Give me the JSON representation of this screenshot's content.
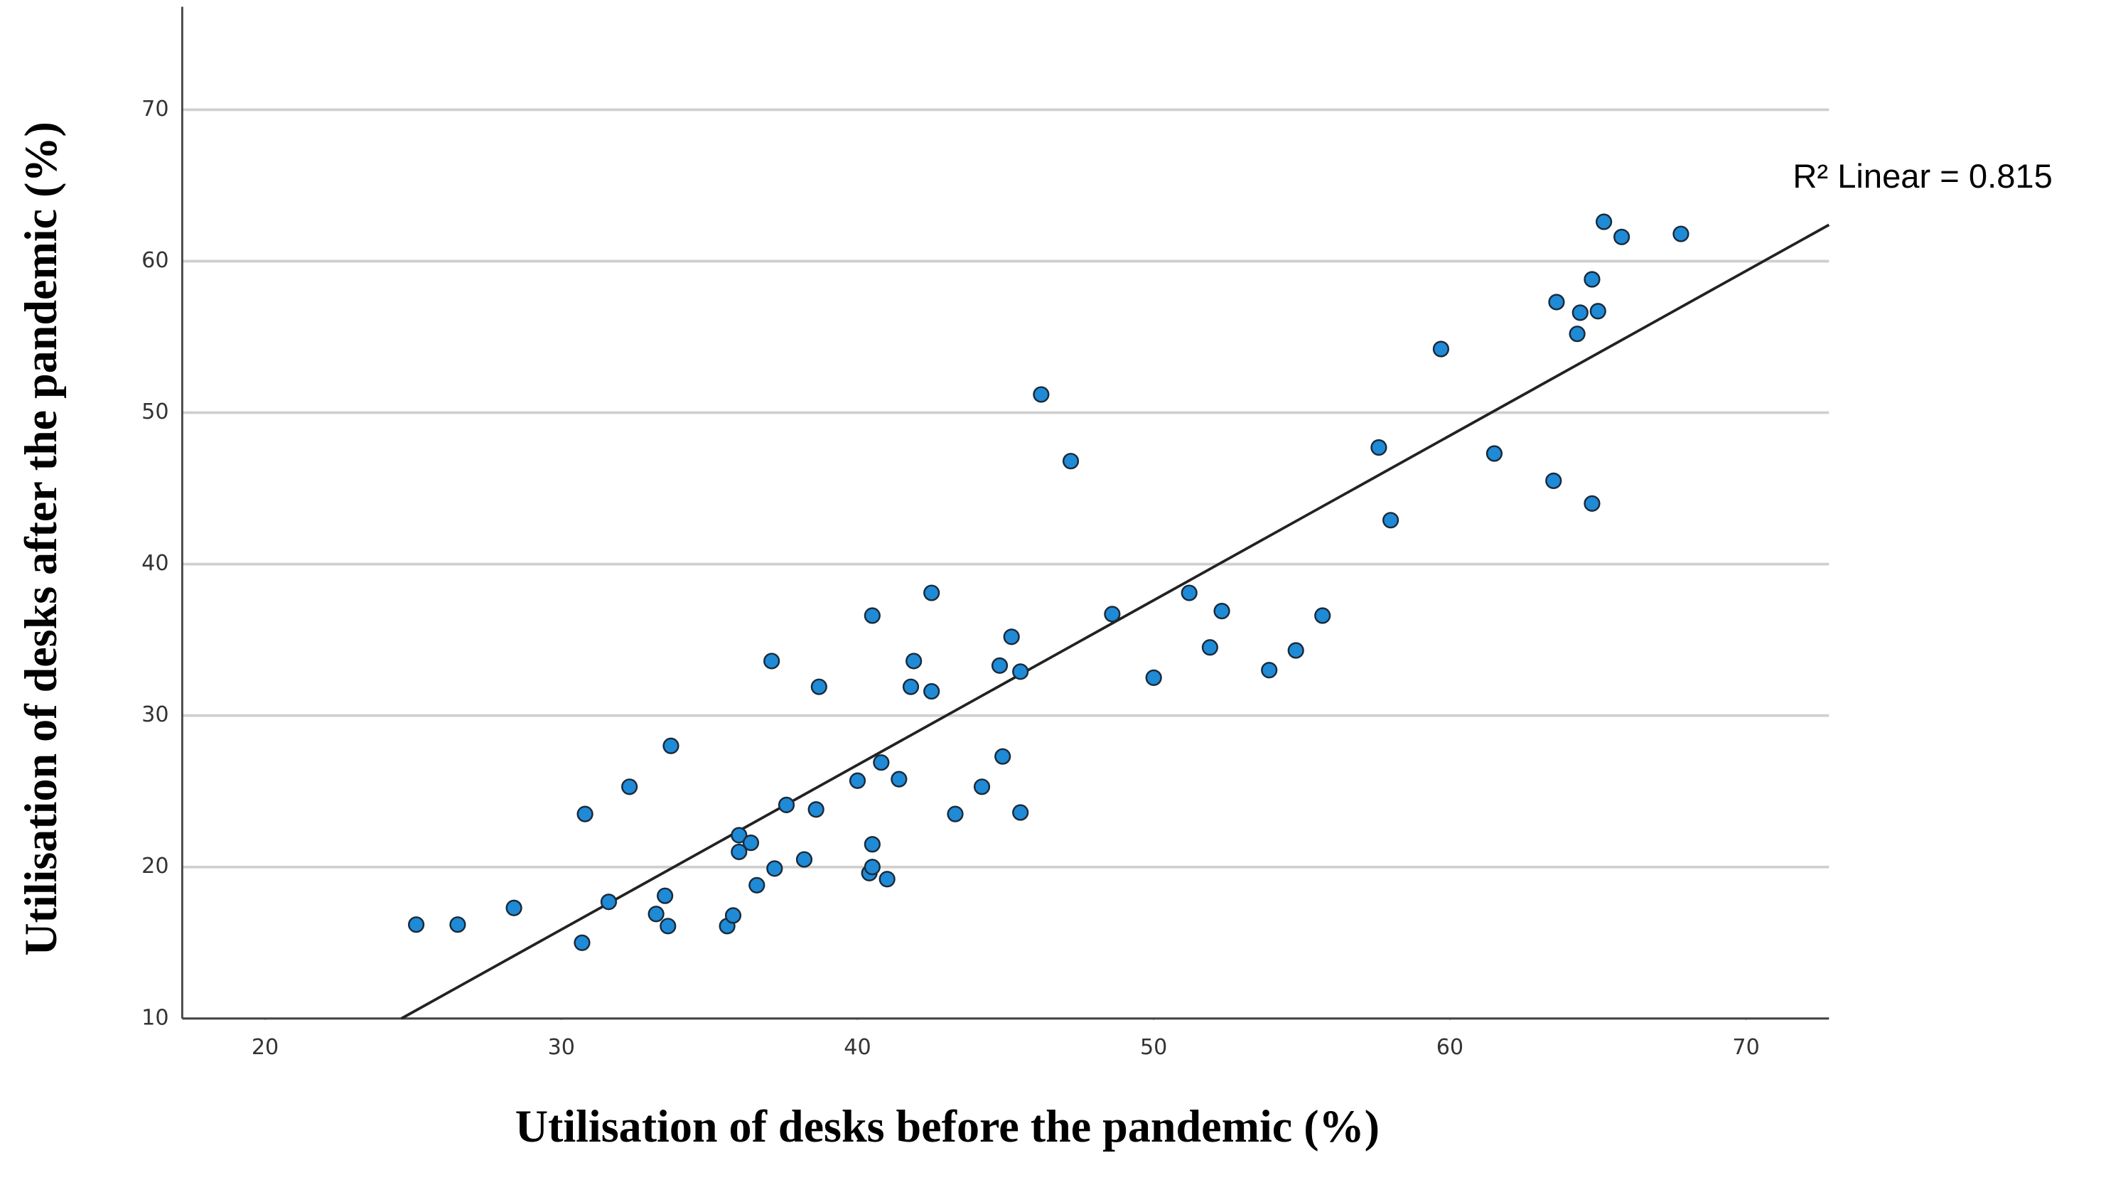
{
  "chart_data": {
    "type": "scatter",
    "x_label": "Utilisation of desks before the pandemic (%)",
    "y_label": "Utilisation of desks after the pandemic (%)",
    "annotation": "R² Linear = 0.815",
    "xlim": [
      17.2,
      72.8
    ],
    "ylim": [
      10,
      76.8
    ],
    "xticks": [
      20,
      30,
      40,
      50,
      60,
      70
    ],
    "yticks": [
      10,
      20,
      30,
      40,
      50,
      60,
      70
    ],
    "grid": true,
    "color": "#1f8ad6",
    "edge_color": "#1a2a3a",
    "line_color": "#222222",
    "fit_line": {
      "x": [
        24.6,
        72.8
      ],
      "y": [
        10,
        62.4
      ]
    },
    "series": [
      {
        "name": null,
        "x": [
          25.1,
          26.5,
          28.4,
          30.7,
          30.8,
          31.6,
          32.3,
          33.2,
          33.5,
          33.6,
          33.7,
          35.6,
          35.8,
          36.0,
          36.0,
          36.4,
          36.6,
          37.1,
          37.2,
          37.6,
          38.2,
          38.6,
          38.7,
          40.0,
          40.4,
          40.5,
          40.5,
          40.5,
          40.8,
          41.0,
          41.4,
          41.8,
          41.9,
          42.5,
          42.5,
          43.3,
          44.2,
          44.8,
          44.9,
          45.2,
          45.5,
          45.5,
          46.2,
          47.2,
          48.6,
          50.0,
          51.2,
          51.9,
          52.3,
          53.9,
          54.8,
          55.7,
          57.6,
          58.0,
          59.7,
          61.5,
          63.5,
          63.6,
          64.3,
          64.4,
          64.8,
          64.8,
          65.0,
          65.2,
          65.8,
          67.8
        ],
        "values": [
          16.2,
          16.2,
          17.3,
          15.0,
          23.5,
          17.7,
          25.3,
          16.9,
          18.1,
          16.1,
          28.0,
          16.1,
          16.8,
          22.1,
          21.0,
          21.6,
          18.8,
          33.6,
          19.9,
          24.1,
          20.5,
          23.8,
          31.9,
          25.7,
          19.6,
          20.0,
          21.5,
          36.6,
          26.9,
          19.2,
          25.8,
          31.9,
          33.6,
          38.1,
          31.6,
          23.5,
          25.3,
          33.3,
          27.3,
          35.2,
          32.9,
          23.6,
          51.2,
          46.8,
          36.7,
          32.5,
          38.1,
          34.5,
          36.9,
          33.0,
          34.3,
          36.6,
          47.7,
          42.9,
          54.2,
          47.3,
          45.5,
          57.3,
          55.2,
          56.6,
          58.8,
          44.0,
          56.7,
          62.6,
          61.6,
          61.8
        ]
      }
    ]
  }
}
